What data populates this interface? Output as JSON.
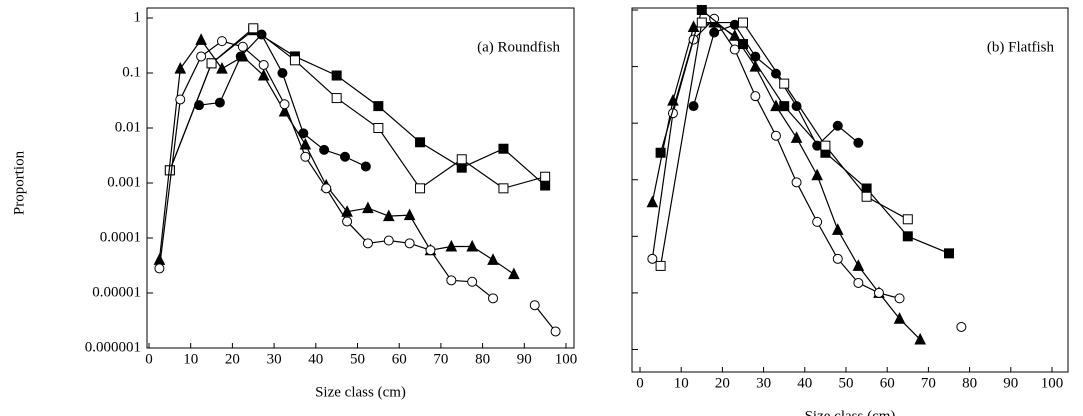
{
  "chart_data": [
    {
      "type": "line",
      "title": "(a) Roundfish",
      "xlabel": "Size class (cm)",
      "ylabel": "Proportion",
      "xlim": [
        0,
        100
      ],
      "xticks": [
        0,
        10,
        20,
        30,
        40,
        50,
        60,
        70,
        80,
        90,
        100
      ],
      "ylim": [
        1e-06,
        1
      ],
      "yticks": [
        1,
        0.1,
        0.01,
        0.001,
        0.0001,
        1e-05,
        1e-06
      ],
      "log_y": true,
      "ytick_labels": true,
      "series": [
        {
          "marker": "square",
          "filled": true,
          "color": "#000",
          "x": [
            5,
            15,
            25,
            35,
            45,
            55,
            65,
            75,
            85,
            95
          ],
          "values": [
            0.0017,
            0.15,
            0.6,
            0.2,
            0.09,
            0.025,
            0.0055,
            0.0019,
            0.0042,
            0.0009
          ]
        },
        {
          "marker": "square",
          "filled": false,
          "color": "#000",
          "x": [
            5,
            15,
            25,
            35,
            45,
            55,
            65,
            75,
            85,
            95
          ],
          "values": [
            0.0017,
            0.15,
            0.65,
            0.17,
            0.035,
            0.01,
            0.0008,
            0.0027,
            0.0008,
            0.0013
          ]
        },
        {
          "marker": "circle",
          "filled": true,
          "color": "#000",
          "x": [
            12,
            17,
            22,
            27,
            32,
            37,
            42,
            47,
            52
          ],
          "values": [
            0.026,
            0.029,
            0.2,
            0.5,
            0.1,
            0.008,
            0.004,
            0.003,
            0.002
          ]
        },
        {
          "marker": "triangle",
          "filled": true,
          "color": "#000",
          "x": [
            2.5,
            7.5,
            12.5,
            17.5,
            22.5,
            27.5,
            32.5,
            37.5,
            42.5,
            47.5,
            52.5,
            57.5,
            62.5,
            67.5,
            72.5,
            77.5,
            82.5,
            87.5
          ],
          "values": [
            4e-05,
            0.12,
            0.4,
            0.12,
            0.2,
            0.09,
            0.02,
            0.005,
            0.0009,
            0.0003,
            0.00035,
            0.00025,
            0.00026,
            6e-05,
            7e-05,
            7e-05,
            4e-05,
            2.2e-05
          ]
        },
        {
          "marker": "circle",
          "filled": false,
          "color": "#000",
          "x": [
            2.5,
            7.5,
            12.5,
            17.5,
            22.5,
            27.5,
            32.5,
            37.5,
            42.5,
            47.5,
            52.5,
            57.5,
            62.5,
            67.5,
            72.5,
            77.5,
            82.5,
            87.5,
            92.5,
            97.5
          ],
          "values": [
            2.8e-05,
            0.033,
            0.2,
            0.38,
            0.3,
            0.14,
            0.027,
            0.003,
            0.0008,
            0.0002,
            8e-05,
            9e-05,
            8e-05,
            6e-05,
            1.7e-05,
            1.6e-05,
            8e-06,
            null,
            6e-06,
            2e-06
          ]
        }
      ]
    },
    {
      "type": "line",
      "title": "(b) Flatfish",
      "xlabel": "Size class (cm)",
      "xlim": [
        0,
        100
      ],
      "xticks": [
        0,
        10,
        20,
        30,
        40,
        50,
        60,
        70,
        80,
        90,
        100
      ],
      "ylim": [
        4e-07,
        1
      ],
      "yticks": [
        1,
        0.1,
        0.01,
        0.001,
        0.0001,
        1e-05,
        1e-06
      ],
      "log_y": true,
      "ytick_labels": false,
      "series": [
        {
          "marker": "triangle",
          "filled": true,
          "color": "#000",
          "x": [
            3,
            8,
            13,
            18,
            23,
            28,
            33,
            38,
            43,
            48,
            53,
            58,
            63,
            68
          ],
          "values": [
            0.0004,
            0.025,
            0.5,
            0.6,
            0.35,
            0.1,
            0.02,
            0.0055,
            0.0012,
            0.00013,
            3e-05,
            1e-05,
            3.5e-06,
            1.5e-06
          ]
        },
        {
          "marker": "circle",
          "filled": false,
          "color": "#000",
          "x": [
            3,
            8,
            13,
            18,
            23,
            28,
            33,
            38,
            43,
            48,
            53,
            58,
            63,
            68,
            73,
            78
          ],
          "values": [
            4e-05,
            0.015,
            0.3,
            0.7,
            0.2,
            0.03,
            0.006,
            0.0009,
            0.00018,
            4e-05,
            1.5e-05,
            1e-05,
            8e-06,
            null,
            null,
            2.5e-06
          ]
        },
        {
          "marker": "circle",
          "filled": true,
          "color": "#000",
          "x": [
            13,
            18,
            23,
            28,
            33,
            38,
            43,
            48,
            53
          ],
          "values": [
            0.02,
            0.4,
            0.55,
            0.15,
            0.075,
            0.02,
            0.004,
            0.009,
            0.0045
          ]
        },
        {
          "marker": "square",
          "filled": true,
          "color": "#000",
          "x": [
            5,
            15,
            25,
            35,
            45,
            55,
            65,
            75
          ],
          "values": [
            0.003,
            1,
            0.25,
            0.02,
            0.003,
            0.0007,
            0.0001,
            5e-05
          ]
        },
        {
          "marker": "square",
          "filled": false,
          "color": "#000",
          "x": [
            5,
            15,
            25,
            35,
            45,
            55,
            65
          ],
          "values": [
            3e-05,
            0.6,
            0.6,
            0.05,
            0.004,
            0.0005,
            0.0002
          ]
        }
      ]
    }
  ]
}
